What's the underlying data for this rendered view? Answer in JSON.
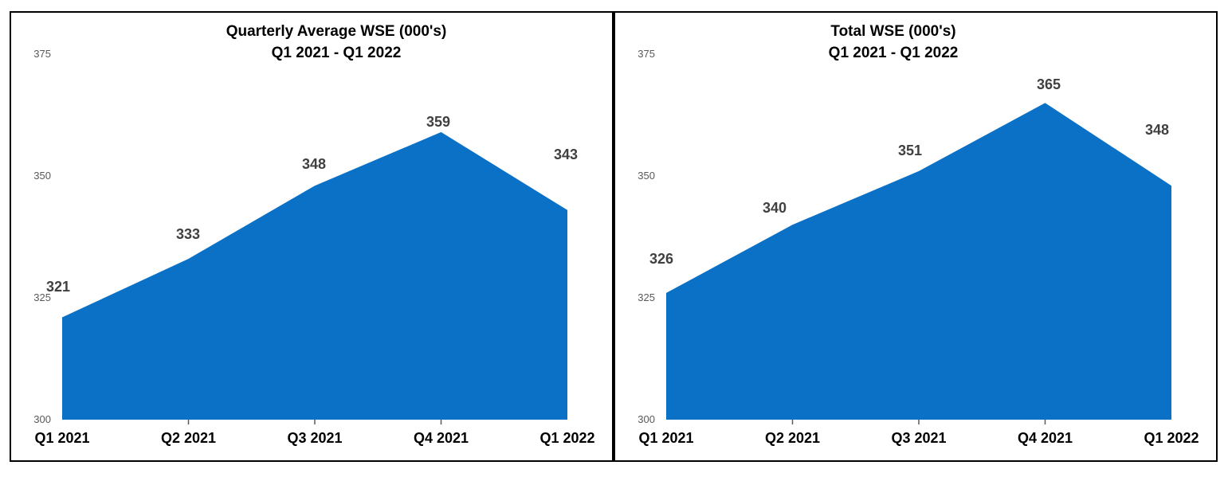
{
  "page": {
    "background": "#ffffff",
    "border_color": "#000000"
  },
  "chart_data": [
    {
      "type": "area",
      "title": "Quarterly Average WSE (000's)",
      "subtitle": "Q1 2021 - Q1 2022",
      "categories": [
        "Q1 2021",
        "Q2 2021",
        "Q3 2021",
        "Q4 2021",
        "Q1 2022"
      ],
      "values": [
        321,
        333,
        348,
        359,
        343
      ],
      "yticks": [
        300,
        325,
        350,
        375
      ],
      "ylim": [
        300,
        375
      ],
      "grid": false,
      "legend": "none",
      "fill_color": "#0A71C6",
      "label_color": "#404040",
      "axis_label_color": "#595959"
    },
    {
      "type": "area",
      "title": "Total WSE (000's)",
      "subtitle": "Q1 2021 - Q1 2022",
      "categories": [
        "Q1 2021",
        "Q2 2021",
        "Q3 2021",
        "Q4 2021",
        "Q1 2022"
      ],
      "values": [
        326,
        340,
        351,
        365,
        348
      ],
      "yticks": [
        300,
        325,
        350,
        375
      ],
      "ylim": [
        300,
        375
      ],
      "grid": false,
      "legend": "none",
      "fill_color": "#0A71C6",
      "label_color": "#404040",
      "axis_label_color": "#595959"
    }
  ]
}
